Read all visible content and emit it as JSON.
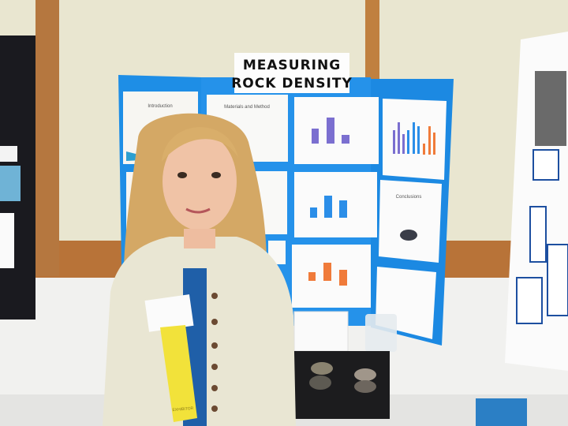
{
  "board": {
    "title_line1": "MEASURING",
    "title_line2": "ROCK DENSITY",
    "panels": {
      "introduction": "Introduction",
      "materials": "Materials and Method",
      "conclusions": "Conclusions"
    },
    "color": "#1e8ee6"
  },
  "ribbon": {
    "label": "EXHIBITOR",
    "color": "#f2e23a"
  }
}
